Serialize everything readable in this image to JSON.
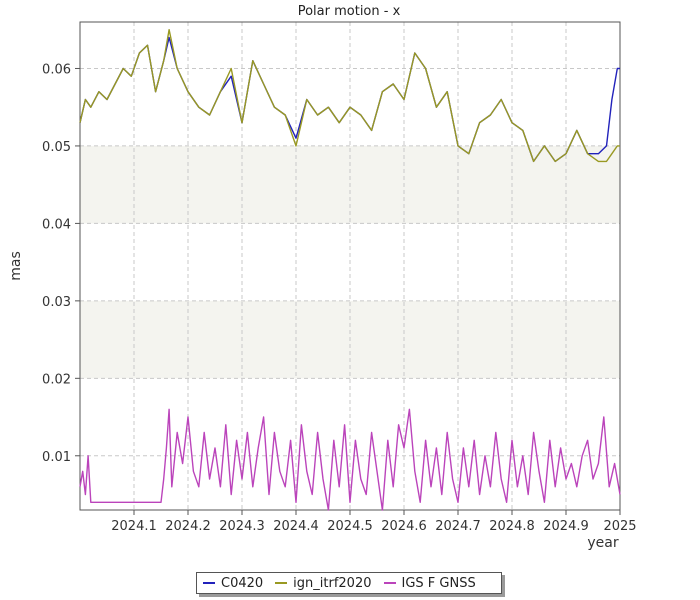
{
  "chart_data": {
    "type": "line",
    "title": "Polar motion - x",
    "xlabel": "year",
    "ylabel": "mas",
    "xlim": [
      2024.0,
      2025.0
    ],
    "ylim": [
      0.003,
      0.066
    ],
    "xticks": [
      "2024.1",
      "2024.2",
      "2024.3",
      "2024.4",
      "2024.5",
      "2024.6",
      "2024.7",
      "2024.8",
      "2024.9",
      "2025"
    ],
    "xtick_values": [
      2024.1,
      2024.2,
      2024.3,
      2024.4,
      2024.5,
      2024.6,
      2024.7,
      2024.8,
      2024.9,
      2025.0
    ],
    "yticks": [
      "0.01",
      "0.02",
      "0.03",
      "0.04",
      "0.05",
      "0.06"
    ],
    "ytick_values": [
      0.01,
      0.02,
      0.03,
      0.04,
      0.05,
      0.06
    ],
    "bands": [
      [
        0.04,
        0.05
      ],
      [
        0.02,
        0.03
      ]
    ],
    "grid": true,
    "legend_position": "bottom-center",
    "series": [
      {
        "name": "C0420",
        "color": "#2222bb",
        "x": [
          2024.0,
          2024.01,
          2024.02,
          2024.035,
          2024.05,
          2024.065,
          2024.08,
          2024.095,
          2024.11,
          2024.125,
          2024.14,
          2024.155,
          2024.165,
          2024.18,
          2024.2,
          2024.22,
          2024.24,
          2024.26,
          2024.28,
          2024.3,
          2024.32,
          2024.34,
          2024.36,
          2024.38,
          2024.4,
          2024.42,
          2024.44,
          2024.46,
          2024.48,
          2024.5,
          2024.52,
          2024.54,
          2024.56,
          2024.58,
          2024.6,
          2024.62,
          2024.64,
          2024.66,
          2024.68,
          2024.7,
          2024.72,
          2024.74,
          2024.76,
          2024.78,
          2024.8,
          2024.82,
          2024.84,
          2024.86,
          2024.88,
          2024.9,
          2024.92,
          2024.94,
          2024.96,
          2024.975,
          2024.985,
          2024.995,
          2025.0
        ],
        "y": [
          0.053,
          0.056,
          0.055,
          0.057,
          0.056,
          0.058,
          0.06,
          0.059,
          0.062,
          0.063,
          0.057,
          0.061,
          0.064,
          0.06,
          0.057,
          0.055,
          0.054,
          0.057,
          0.059,
          0.053,
          0.061,
          0.058,
          0.055,
          0.054,
          0.051,
          0.056,
          0.054,
          0.055,
          0.053,
          0.055,
          0.054,
          0.052,
          0.057,
          0.058,
          0.056,
          0.062,
          0.06,
          0.055,
          0.057,
          0.05,
          0.049,
          0.053,
          0.054,
          0.056,
          0.053,
          0.052,
          0.048,
          0.05,
          0.048,
          0.049,
          0.052,
          0.049,
          0.049,
          0.05,
          0.056,
          0.06,
          0.06
        ]
      },
      {
        "name": "ign_itrf2020",
        "color": "#999922",
        "x": [
          2024.0,
          2024.01,
          2024.02,
          2024.035,
          2024.05,
          2024.065,
          2024.08,
          2024.095,
          2024.11,
          2024.125,
          2024.14,
          2024.155,
          2024.165,
          2024.18,
          2024.2,
          2024.22,
          2024.24,
          2024.26,
          2024.28,
          2024.3,
          2024.32,
          2024.34,
          2024.36,
          2024.38,
          2024.4,
          2024.42,
          2024.44,
          2024.46,
          2024.48,
          2024.5,
          2024.52,
          2024.54,
          2024.56,
          2024.58,
          2024.6,
          2024.62,
          2024.64,
          2024.66,
          2024.68,
          2024.7,
          2024.72,
          2024.74,
          2024.76,
          2024.78,
          2024.8,
          2024.82,
          2024.84,
          2024.86,
          2024.88,
          2024.9,
          2024.92,
          2024.94,
          2024.96,
          2024.975,
          2024.985,
          2024.995,
          2025.0
        ],
        "y": [
          0.053,
          0.056,
          0.055,
          0.057,
          0.056,
          0.058,
          0.06,
          0.059,
          0.062,
          0.063,
          0.057,
          0.061,
          0.065,
          0.06,
          0.057,
          0.055,
          0.054,
          0.057,
          0.06,
          0.053,
          0.061,
          0.058,
          0.055,
          0.054,
          0.05,
          0.056,
          0.054,
          0.055,
          0.053,
          0.055,
          0.054,
          0.052,
          0.057,
          0.058,
          0.056,
          0.062,
          0.06,
          0.055,
          0.057,
          0.05,
          0.049,
          0.053,
          0.054,
          0.056,
          0.053,
          0.052,
          0.048,
          0.05,
          0.048,
          0.049,
          0.052,
          0.049,
          0.048,
          0.048,
          0.049,
          0.05,
          0.05
        ]
      },
      {
        "name": "IGS F GNSS",
        "color": "#bb44bb",
        "x": [
          2024.0,
          2024.005,
          2024.01,
          2024.015,
          2024.02,
          2024.04,
          2024.06,
          2024.08,
          2024.1,
          2024.13,
          2024.15,
          2024.155,
          2024.16,
          2024.165,
          2024.17,
          2024.18,
          2024.19,
          2024.2,
          2024.21,
          2024.22,
          2024.23,
          2024.24,
          2024.25,
          2024.26,
          2024.27,
          2024.28,
          2024.29,
          2024.3,
          2024.31,
          2024.32,
          2024.33,
          2024.34,
          2024.35,
          2024.36,
          2024.37,
          2024.38,
          2024.39,
          2024.4,
          2024.41,
          2024.42,
          2024.43,
          2024.44,
          2024.45,
          2024.46,
          2024.47,
          2024.48,
          2024.49,
          2024.5,
          2024.51,
          2024.52,
          2024.53,
          2024.54,
          2024.55,
          2024.56,
          2024.57,
          2024.58,
          2024.59,
          2024.6,
          2024.61,
          2024.62,
          2024.63,
          2024.64,
          2024.65,
          2024.66,
          2024.67,
          2024.68,
          2024.69,
          2024.7,
          2024.71,
          2024.72,
          2024.73,
          2024.74,
          2024.75,
          2024.76,
          2024.77,
          2024.78,
          2024.79,
          2024.8,
          2024.81,
          2024.82,
          2024.83,
          2024.84,
          2024.85,
          2024.86,
          2024.87,
          2024.88,
          2024.89,
          2024.9,
          2024.91,
          2024.92,
          2024.93,
          2024.94,
          2024.95,
          2024.96,
          2024.97,
          2024.98,
          2024.99,
          2025.0
        ],
        "y": [
          0.006,
          0.008,
          0.005,
          0.01,
          0.004,
          0.004,
          0.004,
          0.004,
          0.004,
          0.004,
          0.004,
          0.007,
          0.011,
          0.016,
          0.006,
          0.013,
          0.009,
          0.015,
          0.008,
          0.006,
          0.013,
          0.007,
          0.011,
          0.006,
          0.014,
          0.005,
          0.012,
          0.007,
          0.013,
          0.006,
          0.011,
          0.015,
          0.005,
          0.013,
          0.008,
          0.006,
          0.012,
          0.004,
          0.014,
          0.008,
          0.005,
          0.013,
          0.007,
          0.003,
          0.012,
          0.006,
          0.014,
          0.004,
          0.012,
          0.007,
          0.005,
          0.013,
          0.008,
          0.003,
          0.012,
          0.006,
          0.014,
          0.011,
          0.016,
          0.008,
          0.004,
          0.012,
          0.006,
          0.011,
          0.005,
          0.013,
          0.007,
          0.004,
          0.011,
          0.006,
          0.012,
          0.005,
          0.01,
          0.006,
          0.013,
          0.007,
          0.004,
          0.012,
          0.006,
          0.01,
          0.005,
          0.013,
          0.008,
          0.004,
          0.012,
          0.006,
          0.011,
          0.007,
          0.009,
          0.006,
          0.01,
          0.012,
          0.007,
          0.009,
          0.015,
          0.006,
          0.009,
          0.005
        ]
      }
    ]
  }
}
